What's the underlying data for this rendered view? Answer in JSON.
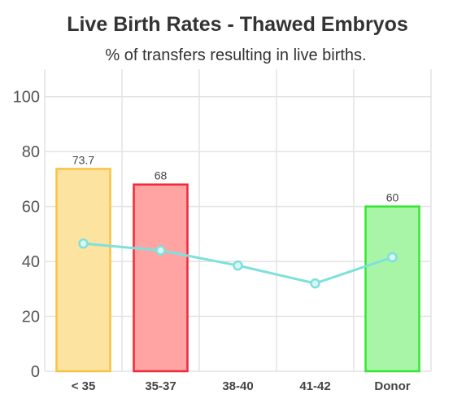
{
  "chart_data": {
    "type": "bar",
    "title": "Live Birth Rates - Thawed Embryos",
    "subtitle": "% of transfers resulting in live births.",
    "xlabel": "",
    "ylabel": "",
    "ylim": [
      0,
      110
    ],
    "yticks": [
      0,
      20,
      40,
      60,
      80,
      100
    ],
    "grid": true,
    "categories": [
      "< 35",
      "35-37",
      "38-40",
      "41-42",
      "Donor"
    ],
    "series": [
      {
        "type": "bar",
        "values": [
          73.7,
          68,
          0,
          0,
          60
        ],
        "data_labels": [
          "73.7",
          "68",
          "",
          "",
          "60"
        ],
        "fill_colors": [
          "#fde3a0",
          "#ffa3a3",
          "#d9b3f5",
          "#b3b3f5",
          "#a8f5a8"
        ],
        "border_colors": [
          "#f7c444",
          "#f02a3a",
          "#a040e0",
          "#6060e0",
          "#33e633"
        ]
      },
      {
        "type": "line",
        "values": [
          46.5,
          44,
          38.5,
          32,
          41.5
        ],
        "color": "#7fe0dc"
      }
    ]
  }
}
